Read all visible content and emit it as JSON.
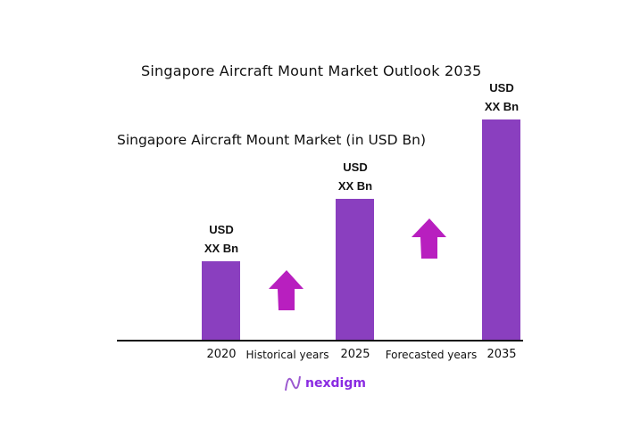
{
  "chart_data": {
    "type": "bar",
    "title": "Singapore Aircraft Mount Market Outlook 2035",
    "subtitle": "Singapore Aircraft Mount Market (in USD Bn)",
    "categories": [
      "2020",
      "2025",
      "2035"
    ],
    "values": [
      36,
      64,
      100
    ],
    "data_labels": [
      [
        "USD",
        "XX Bn"
      ],
      [
        "USD",
        "XX Bn"
      ],
      [
        "USD",
        "XX Bn"
      ]
    ],
    "period_labels": [
      "Historical years",
      "Forecasted years"
    ],
    "ylim": [
      0,
      100
    ],
    "grid": false,
    "bar_color": "#8a3fbf",
    "arrow_color": "#b81fbf"
  },
  "logo": {
    "text": "nexdigm",
    "color": "#8a2be2"
  }
}
